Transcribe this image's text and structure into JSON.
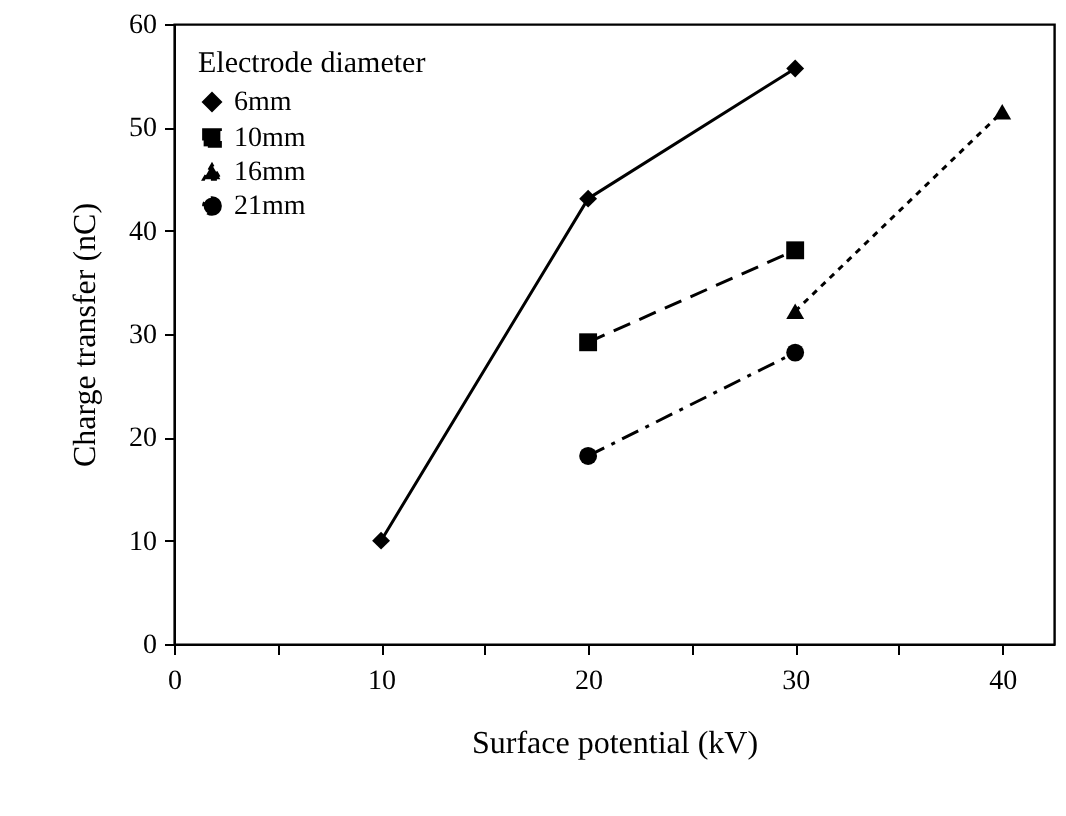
{
  "chart_data": {
    "type": "line",
    "xlabel": "Surface potential (kV)",
    "ylabel": "Charge transfer (nC)",
    "legend_title": "Electrode diameter",
    "legend": "top left",
    "grid": false,
    "xlim": [
      0,
      42.5
    ],
    "xticks": [
      0,
      {
        "value": 5,
        "label": null
      },
      10,
      {
        "value": 15,
        "label": null
      },
      20,
      {
        "value": 25,
        "label": null
      },
      30,
      {
        "value": 35,
        "label": null
      },
      40
    ],
    "ylim": [
      0,
      60
    ],
    "yticks": [
      0,
      10,
      20,
      30,
      40,
      50,
      60
    ],
    "series": [
      {
        "name": "6mm",
        "color": "#000000",
        "marker": "diamond",
        "line_style": "solid",
        "x": [
          10,
          20,
          30
        ],
        "values": [
          10,
          43.1,
          55.7
        ]
      },
      {
        "name": "10mm",
        "color": "#000000",
        "marker": "square",
        "line_style": "dashed",
        "x": [
          20,
          30
        ],
        "values": [
          29.2,
          38.1
        ]
      },
      {
        "name": "16mm",
        "color": "#000000",
        "marker": "triangle",
        "line_style": "dotted",
        "x": [
          30,
          40
        ],
        "values": [
          32.2,
          51.5
        ]
      },
      {
        "name": "21mm",
        "color": "#000000",
        "marker": "circle",
        "line_style": "dashdot",
        "x": [
          20,
          30
        ],
        "values": [
          18.2,
          28.2
        ]
      }
    ]
  }
}
